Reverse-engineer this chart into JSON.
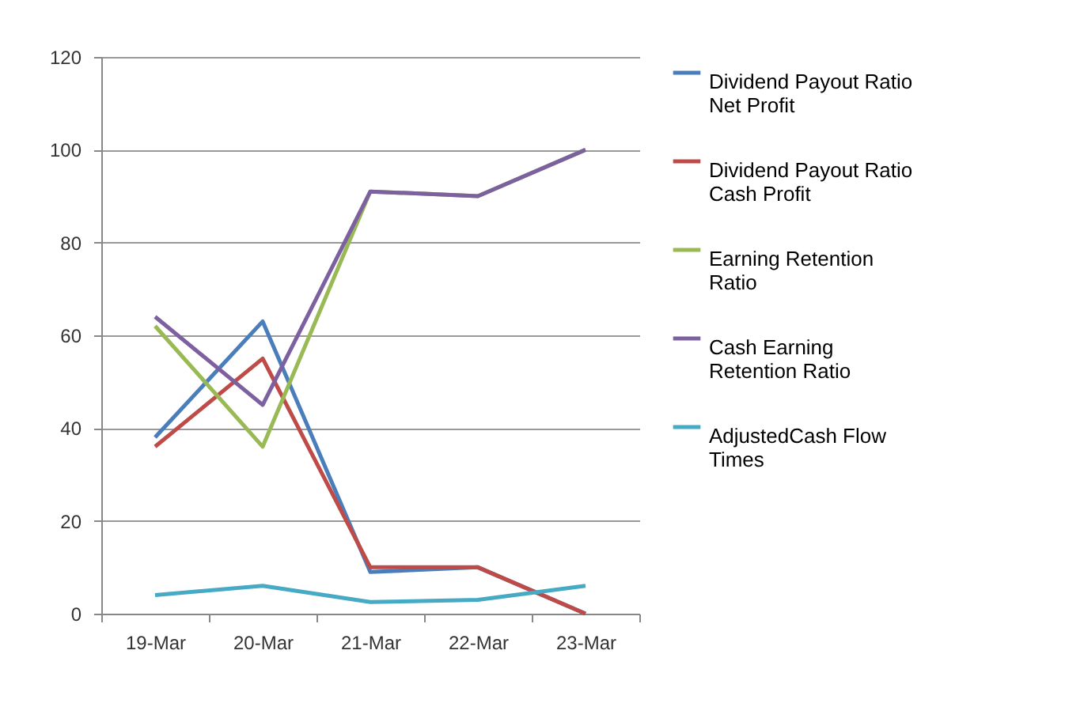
{
  "chart_data": {
    "type": "line",
    "categories": [
      "19-Mar",
      "20-Mar",
      "21-Mar",
      "22-Mar",
      "23-Mar"
    ],
    "series": [
      {
        "name": "Dividend Payout Ratio Net Profit",
        "color": "#4a7ebb",
        "values": [
          38,
          63,
          9,
          10,
          0
        ]
      },
      {
        "name": "Dividend Payout Ratio Cash Profit",
        "color": "#be4b48",
        "values": [
          36,
          55,
          10,
          10,
          0
        ]
      },
      {
        "name": "Earning Retention Ratio",
        "color": "#98b954",
        "values": [
          62,
          36,
          91,
          90,
          100
        ]
      },
      {
        "name": "Cash Earning Retention Ratio",
        "color": "#7d60a0",
        "values": [
          64,
          45,
          91,
          90,
          100
        ]
      },
      {
        "name": "AdjustedCash Flow Times",
        "color": "#46aac5",
        "values": [
          4,
          6,
          2.5,
          3,
          6
        ]
      }
    ],
    "ylim": [
      0,
      120
    ],
    "yticks": [
      0,
      20,
      40,
      60,
      80,
      100,
      120
    ],
    "grid": "y",
    "legend": "right",
    "marker": "none",
    "line_style": "solid"
  }
}
